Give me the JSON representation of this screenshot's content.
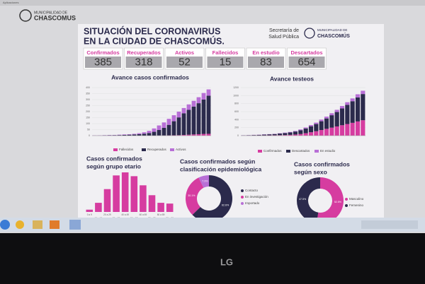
{
  "browser": {
    "bookmarks": "Aplicaciones",
    "brand_top": "MUNICIPALIDAD DE",
    "brand_bottom": "CHASCOMUS"
  },
  "header": {
    "title_line1": "SITUACIÓN DEL CORONAVIRUS",
    "title_line2": "EN LA CIUDAD DE CHASCOMÚS.",
    "secretaria_1": "Secretaría de",
    "secretaria_2": "Salud Pública",
    "logo_1": "MUNICIPALIDAD DE",
    "logo_2": "CHASCOMÚS"
  },
  "stats": [
    {
      "label": "Confirmados",
      "value": 385
    },
    {
      "label": "Recuperados",
      "value": 318
    },
    {
      "label": "Activos",
      "value": 52
    },
    {
      "label": "Fallecidos",
      "value": 15
    },
    {
      "label": "En estudio",
      "value": 83
    },
    {
      "label": "Descartados",
      "value": 654
    }
  ],
  "monitor": {
    "brand": "LG"
  },
  "chart_data": [
    {
      "type": "stacked_bar",
      "title": [
        "Avance casos confirmados"
      ],
      "categories": [
        null,
        null,
        null,
        null,
        null,
        null,
        null,
        null,
        null,
        null,
        null,
        null,
        null,
        null,
        null,
        null,
        null,
        null,
        null,
        null,
        null,
        null,
        null,
        null
      ],
      "series": [
        {
          "name": "Fallecidos",
          "color": "#d63ca0",
          "values": [
            0,
            0,
            0,
            0,
            0,
            0,
            0,
            0,
            0,
            0,
            0,
            0,
            0,
            1,
            1,
            2,
            3,
            4,
            6,
            8,
            10,
            12,
            14,
            15
          ]
        },
        {
          "name": "Recuperados",
          "color": "#2b2a4c",
          "values": [
            0,
            1,
            2,
            3,
            4,
            5,
            6,
            8,
            10,
            12,
            16,
            22,
            32,
            46,
            64,
            88,
            117,
            148,
            180,
            207,
            232,
            258,
            286,
            318
          ]
        },
        {
          "name": "Activos",
          "color": "#b86fd6",
          "values": [
            2,
            2,
            2,
            2,
            2,
            3,
            4,
            4,
            5,
            8,
            12,
            18,
            28,
            38,
            45,
            50,
            50,
            48,
            44,
            45,
            48,
            50,
            55,
            52
          ]
        }
      ],
      "ylim": [
        0,
        400
      ],
      "yticks": [
        0,
        50,
        100,
        150,
        200,
        250,
        300,
        350,
        400
      ],
      "grid": true
    },
    {
      "type": "stacked_bar",
      "title": [
        "Avance testeos"
      ],
      "categories": [
        null,
        null,
        null,
        null,
        null,
        null,
        null,
        null,
        null,
        null,
        null,
        null,
        null,
        null,
        null,
        null,
        null,
        null,
        null,
        null,
        null,
        null,
        null,
        null
      ],
      "series": [
        {
          "name": "Confirmados",
          "color": "#d63ca0",
          "values": [
            2,
            3,
            4,
            5,
            6,
            8,
            10,
            12,
            15,
            20,
            28,
            40,
            60,
            85,
            110,
            140,
            170,
            200,
            230,
            260,
            290,
            320,
            355,
            385
          ]
        },
        {
          "name": "Descartados",
          "color": "#2b2a4c",
          "values": [
            5,
            8,
            12,
            15,
            20,
            25,
            30,
            40,
            50,
            60,
            75,
            95,
            120,
            150,
            180,
            220,
            260,
            310,
            360,
            420,
            480,
            540,
            600,
            654
          ]
        },
        {
          "name": "En estudio",
          "color": "#b86fd6",
          "values": [
            3,
            3,
            4,
            4,
            5,
            5,
            6,
            8,
            10,
            12,
            15,
            20,
            25,
            30,
            35,
            40,
            45,
            50,
            55,
            60,
            65,
            70,
            78,
            83
          ]
        }
      ],
      "ylim": [
        0,
        1200
      ],
      "yticks": [
        0,
        200,
        400,
        600,
        800,
        1000,
        1200
      ],
      "grid": true
    },
    {
      "type": "bar",
      "title": [
        "Casos confirmados",
        "según grupo etario"
      ],
      "categories": [
        "0 a 9",
        "10 a 19",
        "20 a 29",
        "30 a 39",
        "40 a 49",
        "50 a 59",
        "60 a 69",
        "70 a 79",
        "80 a 89",
        "90 a 99"
      ],
      "values": [
        3,
        12,
        30,
        48,
        52,
        47,
        35,
        22,
        12,
        11
      ],
      "color": "#d63ca0"
    },
    {
      "type": "pie",
      "title": [
        "Casos confirmados según",
        "clasificación epidemiológica"
      ],
      "categories": [
        "Contacto",
        "En investigación",
        "Importado"
      ],
      "values": [
        62.6,
        30.1,
        7.3
      ],
      "value_labels": [
        "62.6%",
        "30.1%",
        "7.3%"
      ],
      "colors": [
        "#2b2a4c",
        "#d63ca0",
        "#b86fd6"
      ]
    },
    {
      "type": "pie",
      "title": [
        "Casos confirmados",
        "según sexo"
      ],
      "categories": [
        "Masculino",
        "Femenino"
      ],
      "values": [
        52.5,
        47.5
      ],
      "value_labels": [
        "52.5%",
        "47.5%"
      ],
      "colors": [
        "#d63ca0",
        "#2b2a4c"
      ]
    }
  ]
}
